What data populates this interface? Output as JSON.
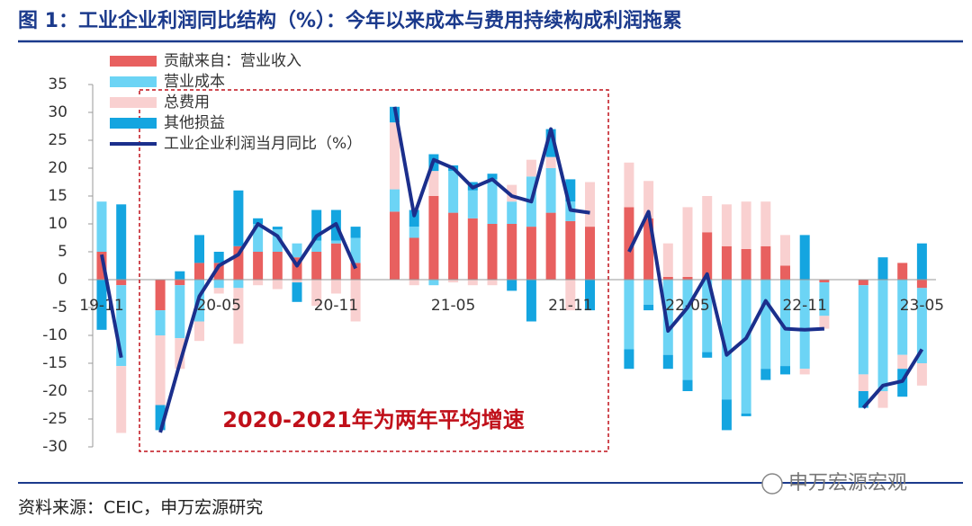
{
  "chart_data": {
    "type": "stacked_bar_line",
    "title": "图 1：工业企业利润同比结构（%）：今年以来成本与费用持续构成利润拖累",
    "source": "资料来源：CEIC，申万宏源研究",
    "watermark": "申万宏源宏观",
    "annotation": "2020-2021年为两年平均增速",
    "categories": [
      "19-11",
      null,
      null,
      null,
      null,
      null,
      "20-05",
      null,
      null,
      null,
      null,
      null,
      "20-11",
      null,
      null,
      null,
      null,
      null,
      "21-05",
      null,
      null,
      null,
      null,
      null,
      "21-11",
      null,
      null,
      null,
      null,
      null,
      "22-05",
      null,
      null,
      null,
      null,
      null,
      "22-11",
      null,
      null,
      null,
      null,
      null,
      "23-05"
    ],
    "ylim": [
      -30,
      35
    ],
    "yticks": [
      -30,
      -25,
      -20,
      -15,
      -10,
      -5,
      0,
      5,
      10,
      15,
      20,
      25,
      30,
      35
    ],
    "legend": "top-left",
    "series": [
      {
        "name": "贡献来自：营业收入",
        "type": "bar",
        "color": "#e8605f",
        "values": [
          5,
          -1,
          null,
          -5.5,
          -1,
          3,
          3,
          6,
          5,
          5,
          4,
          5,
          6.5,
          3,
          null,
          12.2,
          7.5,
          15,
          12,
          11,
          10,
          10,
          9.5,
          12,
          10.5,
          9.5,
          null,
          13,
          11,
          0.5,
          0.5,
          8.5,
          6,
          5.5,
          6,
          2.5,
          0,
          -0.5,
          null,
          -1,
          0,
          3,
          -1.5
        ]
      },
      {
        "name": "营业成本",
        "type": "bar",
        "color": "#6cd4f5",
        "values": [
          9,
          -14.5,
          null,
          -4.5,
          -9.5,
          -7.5,
          -1.5,
          -1.5,
          5,
          4,
          2.5,
          2,
          0.5,
          4.5,
          null,
          4,
          2,
          -1,
          7.5,
          5,
          8,
          4,
          9,
          8,
          3.5,
          0,
          null,
          -12.5,
          -4.5,
          -13.5,
          -18,
          -13,
          -21.5,
          -24,
          -16,
          -15.5,
          -16,
          -6,
          null,
          -16,
          -20,
          -13.5,
          -13.5
        ]
      },
      {
        "name": "总费用",
        "type": "bar",
        "color": "#f9d0d0",
        "values": [
          0,
          -12,
          null,
          -12.5,
          -5.5,
          -3.5,
          -1,
          -10,
          -1,
          -1.7,
          -0.5,
          -4.7,
          -2.5,
          -7.5,
          null,
          12,
          -1,
          4.5,
          -0.5,
          -1,
          -1,
          3,
          3,
          2,
          -5.5,
          8,
          null,
          8,
          6.7,
          6,
          12.5,
          6.5,
          7.5,
          8.5,
          8,
          5.5,
          -1,
          -2.3,
          null,
          -3,
          -3,
          -2.5,
          -4
        ]
      },
      {
        "name": "其他损益",
        "type": "bar",
        "color": "#14a5e0",
        "values": [
          -9,
          13.5,
          null,
          -4.5,
          1.5,
          5,
          2,
          10,
          1,
          0.5,
          -3.5,
          5.5,
          5.5,
          2,
          null,
          2.8,
          3,
          3,
          1,
          1.5,
          1,
          -2,
          -7.5,
          5,
          4,
          -5.5,
          null,
          -3.5,
          -1,
          -2.5,
          -2,
          -1,
          -5.5,
          -0.5,
          -2,
          -1.5,
          8,
          0,
          null,
          -3,
          4,
          -5,
          6.5
        ]
      },
      {
        "name": "工业企业利润当月同比（%）",
        "type": "line",
        "color": "#1b2f8c",
        "values": [
          4.5,
          -14,
          null,
          -27.4,
          -15,
          -3,
          2.5,
          4.5,
          10,
          7.8,
          2.5,
          7.8,
          10,
          2,
          null,
          31,
          11.5,
          21.5,
          20,
          16.5,
          18,
          15,
          14,
          27,
          12.5,
          12,
          null,
          5,
          12.2,
          -9.2,
          -5,
          1,
          -13.5,
          -10.5,
          -3.8,
          -8.8,
          -9,
          -8.8,
          null,
          -23,
          -19,
          -18.2,
          -12.5
        ]
      }
    ]
  }
}
